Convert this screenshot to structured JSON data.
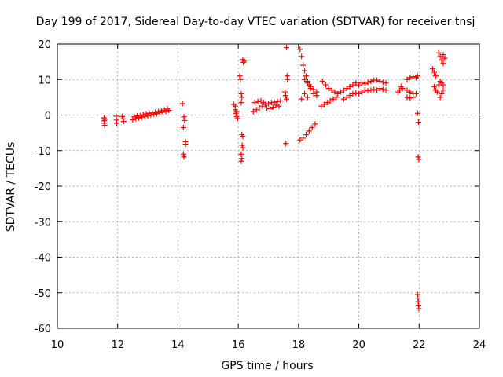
{
  "chart_data": {
    "type": "scatter",
    "title": "Day 199 of 2017, Sidereal Day-to-day VTEC variation (SDTVAR) for receiver tnsj",
    "xlabel": "GPS time / hours",
    "ylabel": "SDTVAR / TECUs",
    "xlim": [
      10,
      24
    ],
    "ylim": [
      -60,
      20
    ],
    "xticks": [
      10,
      12,
      14,
      16,
      18,
      20,
      22,
      24
    ],
    "yticks": [
      -60,
      -50,
      -40,
      -30,
      -20,
      -10,
      0,
      10,
      20
    ],
    "grid": true,
    "legend": "none",
    "marker": "+",
    "color": "#ff0000",
    "series": [
      {
        "name": "SDTVAR",
        "points": [
          [
            11.55,
            -0.8
          ],
          [
            11.55,
            -1.6
          ],
          [
            11.56,
            -2.3
          ],
          [
            11.57,
            -2.9
          ],
          [
            11.58,
            -1.2
          ],
          [
            11.95,
            -0.3
          ],
          [
            11.96,
            -1.4
          ],
          [
            11.97,
            -2.3
          ],
          [
            12.15,
            -0.4
          ],
          [
            12.18,
            -1.1
          ],
          [
            12.2,
            -1.8
          ],
          [
            12.5,
            -1.3
          ],
          [
            12.6,
            -1.0
          ],
          [
            12.7,
            -0.8
          ],
          [
            12.8,
            -0.6
          ],
          [
            12.9,
            -0.4
          ],
          [
            13.0,
            -0.2
          ],
          [
            13.1,
            0.0
          ],
          [
            13.2,
            0.2
          ],
          [
            13.3,
            0.4
          ],
          [
            13.4,
            0.6
          ],
          [
            13.5,
            0.8
          ],
          [
            13.6,
            1.0
          ],
          [
            13.7,
            1.3
          ],
          [
            12.55,
            -0.5
          ],
          [
            12.65,
            -0.2
          ],
          [
            12.75,
            -0.1
          ],
          [
            12.85,
            0.1
          ],
          [
            12.95,
            0.3
          ],
          [
            13.05,
            0.5
          ],
          [
            13.15,
            0.6
          ],
          [
            13.25,
            0.8
          ],
          [
            13.35,
            1.0
          ],
          [
            13.45,
            1.2
          ],
          [
            13.55,
            1.4
          ],
          [
            13.65,
            1.7
          ],
          [
            14.15,
            3.2
          ],
          [
            14.18,
            -3.5
          ],
          [
            14.2,
            -0.5
          ],
          [
            14.22,
            -1.5
          ],
          [
            14.25,
            -7.5
          ],
          [
            14.25,
            -8.2
          ],
          [
            14.18,
            -11.0
          ],
          [
            14.2,
            -11.8
          ],
          [
            15.85,
            3.0
          ],
          [
            15.9,
            1.5
          ],
          [
            15.92,
            0.5
          ],
          [
            15.95,
            -0.5
          ],
          [
            15.9,
            2.5
          ],
          [
            15.95,
            1.0
          ],
          [
            15.98,
            -1.0
          ],
          [
            16.05,
            11.0
          ],
          [
            16.07,
            10.0
          ],
          [
            16.1,
            6.0
          ],
          [
            16.12,
            5.0
          ],
          [
            16.1,
            3.5
          ],
          [
            16.15,
            15.6
          ],
          [
            16.17,
            14.8
          ],
          [
            16.2,
            15.2
          ],
          [
            16.12,
            -5.5
          ],
          [
            16.15,
            -6.0
          ],
          [
            16.13,
            -8.5
          ],
          [
            16.15,
            -9.2
          ],
          [
            16.1,
            -11.0
          ],
          [
            16.12,
            -12.2
          ],
          [
            16.1,
            -13.0
          ],
          [
            16.5,
            1.0
          ],
          [
            16.6,
            1.5
          ],
          [
            16.7,
            2.0
          ],
          [
            16.8,
            2.5
          ],
          [
            16.9,
            3.0
          ],
          [
            17.0,
            3.2
          ],
          [
            17.1,
            3.5
          ],
          [
            17.2,
            3.6
          ],
          [
            17.3,
            3.8
          ],
          [
            17.4,
            4.0
          ],
          [
            16.55,
            3.5
          ],
          [
            16.65,
            3.8
          ],
          [
            16.75,
            4.0
          ],
          [
            16.85,
            3.5
          ],
          [
            16.95,
            2.0
          ],
          [
            17.05,
            1.8
          ],
          [
            17.15,
            2.2
          ],
          [
            17.25,
            2.8
          ],
          [
            17.35,
            2.5
          ],
          [
            17.55,
            6.5
          ],
          [
            17.57,
            5.5
          ],
          [
            17.6,
            4.5
          ],
          [
            17.6,
            19.0
          ],
          [
            17.62,
            11.0
          ],
          [
            17.63,
            10.0
          ],
          [
            17.58,
            -8.0
          ],
          [
            18.05,
            18.5
          ],
          [
            18.1,
            16.5
          ],
          [
            18.15,
            14.0
          ],
          [
            18.2,
            12.5
          ],
          [
            18.25,
            11.0
          ],
          [
            18.3,
            9.5
          ],
          [
            18.35,
            8.5
          ],
          [
            18.4,
            7.5
          ],
          [
            18.5,
            6.0
          ],
          [
            18.6,
            5.5
          ],
          [
            18.2,
            10.0
          ],
          [
            18.3,
            9.0
          ],
          [
            18.4,
            8.0
          ],
          [
            18.5,
            7.2
          ],
          [
            18.6,
            6.5
          ],
          [
            18.05,
            -7.0
          ],
          [
            18.15,
            -6.5
          ],
          [
            18.25,
            -5.5
          ],
          [
            18.35,
            -4.5
          ],
          [
            18.45,
            -3.5
          ],
          [
            18.55,
            -2.5
          ],
          [
            18.1,
            4.5
          ],
          [
            18.2,
            6.0
          ],
          [
            18.3,
            5.0
          ],
          [
            18.75,
            2.5
          ],
          [
            18.85,
            3.0
          ],
          [
            18.95,
            3.5
          ],
          [
            19.05,
            4.0
          ],
          [
            19.15,
            4.5
          ],
          [
            19.25,
            5.0
          ],
          [
            18.8,
            9.5
          ],
          [
            18.9,
            8.5
          ],
          [
            19.0,
            7.5
          ],
          [
            19.1,
            7.0
          ],
          [
            19.2,
            6.5
          ],
          [
            19.3,
            6.0
          ],
          [
            19.4,
            6.5
          ],
          [
            19.5,
            7.0
          ],
          [
            19.6,
            7.5
          ],
          [
            19.7,
            8.0
          ],
          [
            19.8,
            8.5
          ],
          [
            19.9,
            9.0
          ],
          [
            20.0,
            8.5
          ],
          [
            20.1,
            9.0
          ],
          [
            19.5,
            4.5
          ],
          [
            19.6,
            5.0
          ],
          [
            19.7,
            5.5
          ],
          [
            19.8,
            6.0
          ],
          [
            19.9,
            6.2
          ],
          [
            20.0,
            6.0
          ],
          [
            20.1,
            6.5
          ],
          [
            20.2,
            7.0
          ],
          [
            20.2,
            8.8
          ],
          [
            20.3,
            9.2
          ],
          [
            20.4,
            9.5
          ],
          [
            20.5,
            9.8
          ],
          [
            20.6,
            9.8
          ],
          [
            20.7,
            9.5
          ],
          [
            20.8,
            9.2
          ],
          [
            20.9,
            9.0
          ],
          [
            20.3,
            6.8
          ],
          [
            20.4,
            7.0
          ],
          [
            20.5,
            7.2
          ],
          [
            20.6,
            7.0
          ],
          [
            20.7,
            7.5
          ],
          [
            20.8,
            7.2
          ],
          [
            20.9,
            7.0
          ],
          [
            21.3,
            6.5
          ],
          [
            21.35,
            7.0
          ],
          [
            21.4,
            8.0
          ],
          [
            21.45,
            7.5
          ],
          [
            21.6,
            10.0
          ],
          [
            21.7,
            10.5
          ],
          [
            21.8,
            10.8
          ],
          [
            21.9,
            10.5
          ],
          [
            21.95,
            11.0
          ],
          [
            21.6,
            7.0
          ],
          [
            21.7,
            6.5
          ],
          [
            21.8,
            6.0
          ],
          [
            21.6,
            5.0
          ],
          [
            21.7,
            4.8
          ],
          [
            21.8,
            5.0
          ],
          [
            21.9,
            6.0
          ],
          [
            21.95,
            0.5
          ],
          [
            21.98,
            -2.0
          ],
          [
            21.97,
            -11.8
          ],
          [
            21.99,
            -12.5
          ],
          [
            21.95,
            -50.5
          ],
          [
            21.96,
            -51.5
          ],
          [
            21.97,
            -52.5
          ],
          [
            21.98,
            -53.5
          ],
          [
            21.99,
            -54.5
          ],
          [
            22.45,
            13.0
          ],
          [
            22.5,
            12.0
          ],
          [
            22.55,
            11.0
          ],
          [
            22.5,
            8.0
          ],
          [
            22.55,
            7.0
          ],
          [
            22.6,
            6.5
          ],
          [
            22.65,
            8.5
          ],
          [
            22.65,
            17.5
          ],
          [
            22.7,
            16.5
          ],
          [
            22.75,
            15.5
          ],
          [
            22.8,
            14.5
          ],
          [
            22.85,
            16.0
          ],
          [
            22.8,
            17.0
          ],
          [
            22.7,
            9.5
          ],
          [
            22.75,
            9.0
          ],
          [
            22.8,
            8.5
          ],
          [
            22.7,
            5.0
          ],
          [
            22.75,
            6.0
          ],
          [
            22.8,
            7.0
          ]
        ]
      }
    ]
  }
}
